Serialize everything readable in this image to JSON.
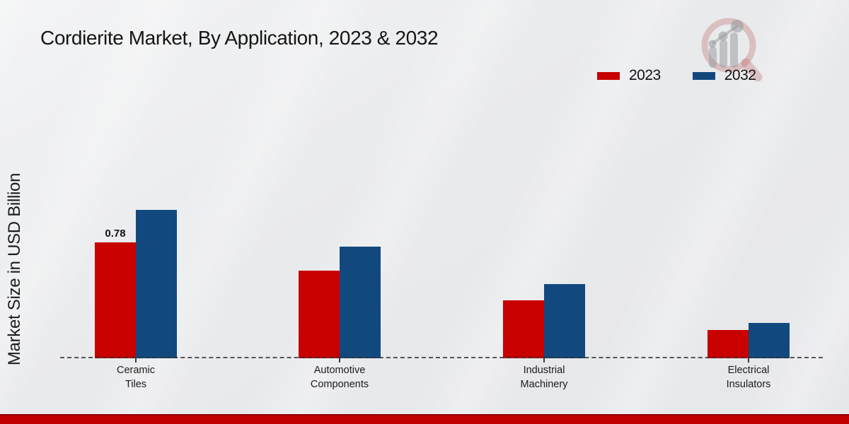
{
  "chart_data": {
    "type": "bar",
    "title": "Cordierite Market, By Application, 2023 & 2032",
    "ylabel": "Market Size in USD Billion",
    "xlabel": "",
    "categories": [
      "Ceramic Tiles",
      "Automotive Components",
      "Industrial Machinery",
      "Electrical Insulators"
    ],
    "category_lines": [
      [
        "Ceramic",
        "Tiles"
      ],
      [
        "Automotive",
        "Components"
      ],
      [
        "Industrial",
        "Machinery"
      ],
      [
        "Electrical",
        "Insulators"
      ]
    ],
    "series": [
      {
        "name": "2023",
        "color": "#c80000",
        "values": [
          0.78,
          0.59,
          0.39,
          0.19
        ]
      },
      {
        "name": "2032",
        "color": "#11497f",
        "values": [
          1.0,
          0.75,
          0.5,
          0.24
        ]
      }
    ],
    "annotations": [
      {
        "series": "2023",
        "category": "Ceramic Tiles",
        "text": "0.78"
      }
    ],
    "ylim": [
      0,
      1.05
    ],
    "grid": false,
    "legend_position": "top-right",
    "baseline_style": "dashed",
    "accent_colors": {
      "footer_stripe": "#c10101",
      "background": "#e9eaec"
    }
  }
}
